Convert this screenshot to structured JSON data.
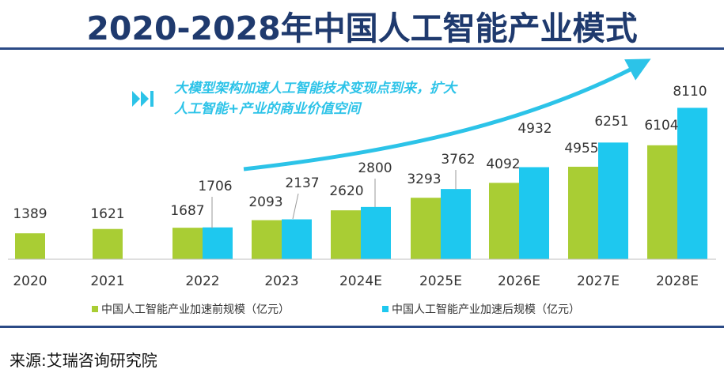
{
  "page": {
    "title": "2020-2028年中国人工智能产业模式",
    "source": "来源:艾瑞咨询研究院"
  },
  "colors": {
    "before": "#a9cd34",
    "after": "#1ec8ef",
    "annotation": "#2cc3e8",
    "title": "#1f3a6e"
  },
  "annotation": {
    "line1": "大模型架构加速人工智能技术变现点到来，扩大",
    "line2": "人工智能+产业的商业价值空间",
    "icon": "fast-forward-icon"
  },
  "chart_data": {
    "type": "bar",
    "categories": [
      "2020",
      "2021",
      "2022",
      "2023",
      "2024E",
      "2025E",
      "2026E",
      "2027E",
      "2028E"
    ],
    "series": [
      {
        "name": "中国人工智能产业加速前规模（亿元）",
        "values": [
          1389,
          1621,
          1687,
          2093,
          2620,
          3293,
          4092,
          4955,
          6104
        ]
      },
      {
        "name": "中国人工智能产业加速后规模（亿元）",
        "values": [
          null,
          null,
          1706,
          2137,
          2800,
          3762,
          4932,
          6251,
          8110
        ]
      }
    ],
    "legend_position": "bottom",
    "grid": false
  }
}
